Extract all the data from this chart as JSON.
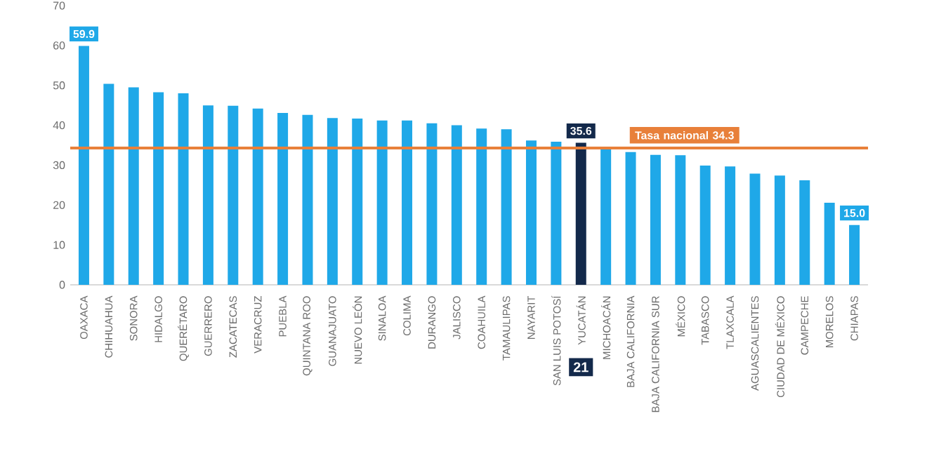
{
  "chart_data": {
    "type": "bar",
    "categories": [
      "OAXACA",
      "CHIHUAHUA",
      "SONORA",
      "HIDALGO",
      "QUERÉTARO",
      "GUERRERO",
      "ZACATECAS",
      "VERACRUZ",
      "PUEBLA",
      "QUINTANA ROO",
      "GUANAJUATO",
      "NUEVO LEÓN",
      "SINALOA",
      "COLIMA",
      "DURANGO",
      "JALISCO",
      "COAHUILA",
      "TAMAULIPAS",
      "NAYARIT",
      "SAN LUIS POTOSÍ",
      "YUCATÁN",
      "MICHOACÁN",
      "BAJA CALIFORNIA",
      "BAJA CALIFORNIA SUR",
      "MÉXICO",
      "TABASCO",
      "TLAXCALA",
      "AGUASCALIENTES",
      "CIUDAD DE MÉXICO",
      "CAMPECHE",
      "MORELOS",
      "CHIAPAS"
    ],
    "values": [
      59.9,
      50.4,
      49.5,
      48.3,
      48.0,
      45.0,
      44.9,
      44.2,
      43.1,
      42.6,
      41.8,
      41.7,
      41.2,
      41.2,
      40.5,
      40.0,
      39.2,
      39.0,
      36.2,
      35.9,
      35.6,
      34.0,
      33.3,
      32.6,
      32.5,
      29.9,
      29.7,
      27.9,
      27.4,
      26.2,
      20.6,
      15.0
    ],
    "value_labels": [
      "59.9",
      null,
      null,
      null,
      null,
      null,
      null,
      null,
      null,
      null,
      null,
      null,
      null,
      null,
      null,
      null,
      null,
      null,
      null,
      null,
      "35.6",
      null,
      null,
      null,
      null,
      null,
      null,
      null,
      null,
      null,
      null,
      "15.0"
    ],
    "colors": [
      "#1fa8e8",
      "#1fa8e8",
      "#1fa8e8",
      "#1fa8e8",
      "#1fa8e8",
      "#1fa8e8",
      "#1fa8e8",
      "#1fa8e8",
      "#1fa8e8",
      "#1fa8e8",
      "#1fa8e8",
      "#1fa8e8",
      "#1fa8e8",
      "#1fa8e8",
      "#1fa8e8",
      "#1fa8e8",
      "#1fa8e8",
      "#1fa8e8",
      "#1fa8e8",
      "#1fa8e8",
      "#13294b",
      "#1fa8e8",
      "#1fa8e8",
      "#1fa8e8",
      "#1fa8e8",
      "#1fa8e8",
      "#1fa8e8",
      "#1fa8e8",
      "#1fa8e8",
      "#1fa8e8",
      "#1fa8e8",
      "#1fa8e8"
    ],
    "ylim": [
      0,
      70
    ],
    "yticks": [
      0,
      10,
      20,
      30,
      40,
      50,
      60,
      70
    ],
    "ref_lines": [
      {
        "axis": "y",
        "value": 34.3,
        "label": "Tasa nacional 34.3",
        "color": "#e8803a"
      }
    ],
    "annotations": [
      "21"
    ]
  }
}
